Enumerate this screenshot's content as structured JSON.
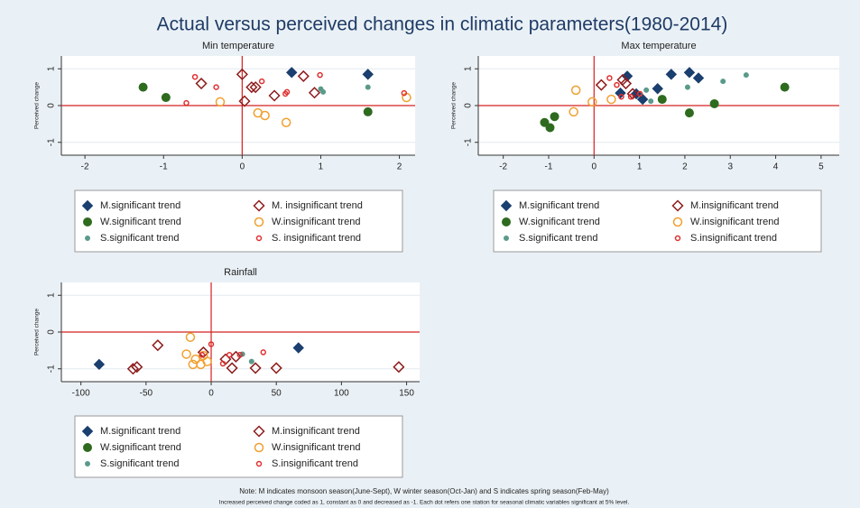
{
  "title": "Actual versus perceived changes in climatic parameters(1980-2014)",
  "chart_data": [
    {
      "type": "scatter",
      "title": "Min temperature",
      "ylabel": "Perceived change",
      "xlim": [
        -2.3,
        2.2
      ],
      "ylim": [
        -1.35,
        1.35
      ],
      "xticks": [
        -2,
        -1,
        0,
        1,
        2
      ],
      "yticks": [
        1,
        0,
        -1
      ],
      "grid": true,
      "zero_lines": true,
      "series": [
        {
          "name": "M.significant trend",
          "color": "#1b3f6e",
          "marker": "diamond",
          "filled": true,
          "x": [
            0.63,
            1.6
          ],
          "y": [
            0.9,
            0.85
          ]
        },
        {
          "name": "M. insignificant trend",
          "color": "#8e1c1c",
          "marker": "diamond",
          "filled": false,
          "x": [
            0,
            -0.52,
            0.03,
            0.12,
            0.17,
            0.41,
            0.78,
            0.92
          ],
          "y": [
            0.85,
            0.6,
            0.12,
            0.5,
            0.5,
            0.27,
            0.8,
            0.35
          ]
        },
        {
          "name": "W.significant trend",
          "color": "#2e6b1f",
          "marker": "circle",
          "filled": true,
          "x": [
            -1.26,
            -0.97,
            1.6
          ],
          "y": [
            0.5,
            0.22,
            -0.17
          ]
        },
        {
          "name": "W.insignificant trend",
          "color": "#f0a030",
          "marker": "circle",
          "filled": false,
          "x": [
            -0.28,
            0.2,
            0.29,
            0.56,
            2.09
          ],
          "y": [
            0.1,
            -0.2,
            -0.27,
            -0.46,
            0.22
          ]
        },
        {
          "name": "S.significant trend",
          "color": "#5b9a8b",
          "marker": "dot",
          "filled": true,
          "x": [
            1.0,
            1.6,
            1.03
          ],
          "y": [
            0.45,
            0.5,
            0.37
          ]
        },
        {
          "name": "S. insignificant trend",
          "color": "#e03030",
          "marker": "dot",
          "filled": false,
          "x": [
            -0.71,
            -0.33,
            -0.6,
            0.25,
            0.57,
            0.99,
            2.06,
            0.55
          ],
          "y": [
            0.07,
            0.5,
            0.78,
            0.66,
            0.37,
            0.83,
            0.34,
            0.32
          ]
        }
      ]
    },
    {
      "type": "scatter",
      "title": "Max temperature",
      "ylabel": "Perceived change",
      "xlim": [
        -2.55,
        5.4
      ],
      "ylim": [
        -1.35,
        1.35
      ],
      "xticks": [
        -2,
        -1,
        0,
        1,
        2,
        3,
        4,
        5
      ],
      "yticks": [
        1,
        0,
        -1
      ],
      "grid": true,
      "zero_lines": true,
      "series": [
        {
          "name": "M.significant trend",
          "color": "#1b3f6e",
          "marker": "diamond",
          "filled": true,
          "x": [
            0.73,
            0.58,
            0.93,
            1.07,
            1.7,
            2.1,
            2.3,
            1.4
          ],
          "y": [
            0.8,
            0.34,
            0.32,
            0.17,
            0.85,
            0.9,
            0.75,
            0.46
          ]
        },
        {
          "name": "M.insignificant trend",
          "color": "#8e1c1c",
          "marker": "diamond",
          "filled": false,
          "x": [
            0.16,
            0.7,
            0.85,
            0.63
          ],
          "y": [
            0.56,
            0.6,
            0.32,
            0.7
          ]
        },
        {
          "name": "W.significant trend",
          "color": "#2e6b1f",
          "marker": "circle",
          "filled": true,
          "x": [
            -1.09,
            -0.97,
            -0.87,
            1.5,
            2.1,
            2.65,
            4.2
          ],
          "y": [
            -0.46,
            -0.6,
            -0.3,
            0.17,
            -0.2,
            0.05,
            0.5
          ]
        },
        {
          "name": "W.insignificant trend",
          "color": "#f0a030",
          "marker": "circle",
          "filled": false,
          "x": [
            -0.4,
            -0.45,
            -0.04,
            0.38
          ],
          "y": [
            0.42,
            -0.17,
            0.1,
            0.17
          ]
        },
        {
          "name": "S.significant trend",
          "color": "#5b9a8b",
          "marker": "dot",
          "filled": true,
          "x": [
            1.15,
            2.06,
            2.84,
            3.35,
            1.25
          ],
          "y": [
            0.42,
            0.5,
            0.66,
            0.83,
            0.12
          ]
        },
        {
          "name": "S.insignificant trend",
          "color": "#e03030",
          "marker": "dot",
          "filled": false,
          "x": [
            0.34,
            0.5,
            0.6,
            0.81,
            1.01
          ],
          "y": [
            0.75,
            0.56,
            0.24,
            0.24,
            0.32
          ]
        }
      ]
    },
    {
      "type": "scatter",
      "title": "Rainfall",
      "ylabel": "Perceived change",
      "xlim": [
        -115,
        160
      ],
      "ylim": [
        -1.35,
        1.35
      ],
      "xticks": [
        -100,
        -50,
        0,
        50,
        100,
        150
      ],
      "yticks": [
        1,
        0,
        -1
      ],
      "grid": true,
      "zero_lines": true,
      "series": [
        {
          "name": "M.significant trend",
          "color": "#1b3f6e",
          "marker": "diamond",
          "filled": true,
          "x": [
            -86,
            67
          ],
          "y": [
            -0.88,
            -0.43
          ]
        },
        {
          "name": "M.insignificant trend",
          "color": "#8e1c1c",
          "marker": "diamond",
          "filled": false,
          "x": [
            -57,
            -60,
            -41,
            -6,
            11,
            16,
            34,
            50,
            144,
            19
          ],
          "y": [
            -0.95,
            -1.0,
            -0.36,
            -0.55,
            -0.74,
            -0.98,
            -0.98,
            -0.98,
            -0.95,
            -0.67
          ]
        },
        {
          "name": "W.significant trend",
          "color": "#2e6b1f",
          "marker": "circle",
          "filled": true,
          "x": [],
          "y": []
        },
        {
          "name": "W.insignificant trend",
          "color": "#f0a030",
          "marker": "circle",
          "filled": false,
          "x": [
            -16,
            -19,
            -12,
            -8,
            -3,
            -14,
            -6
          ],
          "y": [
            -0.14,
            -0.6,
            -0.74,
            -0.88,
            -0.8,
            -0.88,
            -0.64
          ]
        },
        {
          "name": "S.significant trend",
          "color": "#5b9a8b",
          "marker": "dot",
          "filled": true,
          "x": [
            24,
            31
          ],
          "y": [
            -0.6,
            -0.8
          ]
        },
        {
          "name": "S.insignificant trend",
          "color": "#e03030",
          "marker": "dot",
          "filled": false,
          "x": [
            0,
            14,
            22,
            40,
            9,
            -7
          ],
          "y": [
            -0.33,
            -0.62,
            -0.62,
            -0.55,
            -0.86,
            -0.62
          ]
        }
      ]
    }
  ],
  "notes": [
    "Note: M indicates monsoon season(June-Sept), W winter season(Oct-Jan) and S indicates spring season(Feb-May)",
    "Increased perceived change coded as 1, constant as 0 and decreased as -1. Each dot refers one station for seasonal climatic variables significant at 5% level."
  ]
}
